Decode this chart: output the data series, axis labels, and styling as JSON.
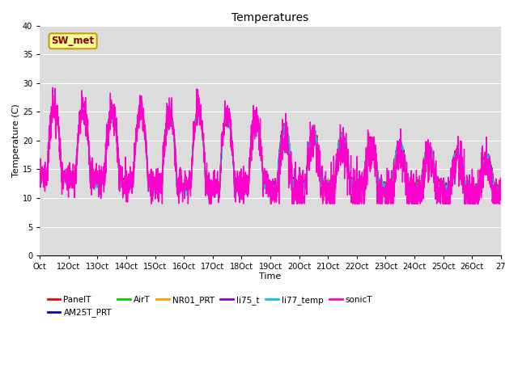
{
  "title": "Temperatures",
  "xlabel": "Time",
  "ylabel": "Temperature (C)",
  "ylim": [
    0,
    40
  ],
  "yticks": [
    0,
    5,
    10,
    15,
    20,
    25,
    30,
    35,
    40
  ],
  "bg_color": "#dcdcdc",
  "fig_color": "#ffffff",
  "annotation_text": "SW_met",
  "annotation_bg": "#ffff99",
  "annotation_border": "#cc9900",
  "legend_entries": [
    "PanelT",
    "AM25T_PRT",
    "AirT",
    "NR01_PRT",
    "li75_t",
    "li77_temp",
    "sonicT"
  ],
  "legend_colors": [
    "#ff0000",
    "#0000cc",
    "#00cc00",
    "#ff9900",
    "#9900cc",
    "#00cccc",
    "#ff00cc"
  ],
  "line_width": 1.0,
  "n_days": 16,
  "pts_per_day": 144,
  "x_labels": [
    "Oct",
    "12Oct",
    "13Oct",
    "14Oct",
    "15Oct",
    "16Oct",
    "17Oct",
    "18Oct",
    "19Oct",
    "20Oct",
    "21Oct",
    "22Oct",
    "23Oct",
    "24Oct",
    "25Oct",
    "26Oct",
    "27"
  ]
}
